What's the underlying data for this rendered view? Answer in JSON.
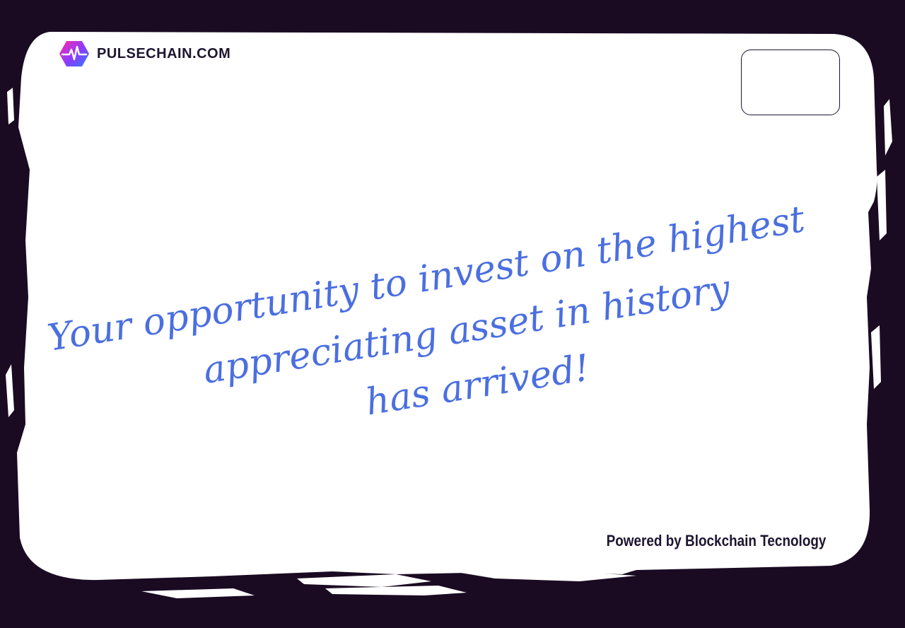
{
  "brand": {
    "name": "PULSECHAIN.COM",
    "logo_icon": "pulse-heartbeat-hexagon-icon",
    "logo_gradient": [
      "#ff2aa8",
      "#8a3cff",
      "#2f7bff"
    ]
  },
  "message": {
    "line1": "Your opportunity to invest on the highest",
    "line2": "appreciating asset in history",
    "line3": "has arrived!"
  },
  "footer": {
    "powered_by": "Powered by Blockchain Tecnology"
  },
  "colors": {
    "background": "#1a0b22",
    "card": "#ffffff",
    "message_text": "#4b6fe0",
    "dark_text": "#1f1530"
  }
}
